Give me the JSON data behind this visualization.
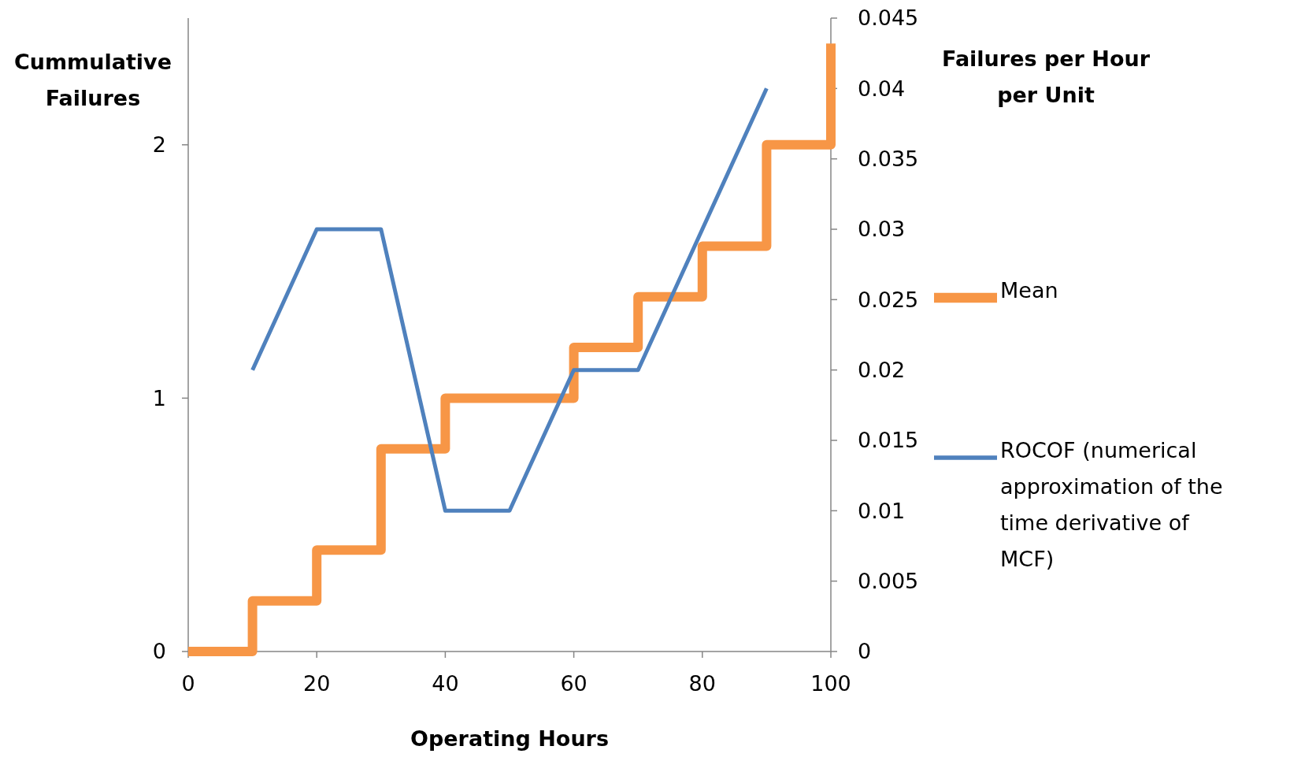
{
  "chart_data": {
    "type": "line",
    "xlabel": "Operating Hours",
    "ylabel": "Cummulative Failures",
    "y2label": "Failures per Hour per Unit",
    "xlim": [
      0,
      100
    ],
    "xticks": [
      0,
      20,
      40,
      60,
      80,
      100
    ],
    "ylim": [
      0,
      2.5
    ],
    "yticks": [
      0,
      1,
      2
    ],
    "y2lim": [
      0,
      0.045
    ],
    "y2ticks": [
      0,
      0.005,
      0.01,
      0.015,
      0.02,
      0.025,
      0.03,
      0.035,
      0.04,
      0.045
    ],
    "grid": false,
    "legend": "right",
    "marker": "none",
    "line_style": "solid",
    "series": [
      {
        "name": "Mean",
        "type": "step",
        "color": "#f79646",
        "x": [
          0,
          10,
          20,
          30,
          40,
          60,
          70,
          80,
          90,
          100
        ],
        "values": [
          0,
          0.2,
          0.4,
          0.8,
          1,
          1.2,
          1.4,
          1.6,
          2,
          2.4
        ]
      },
      {
        "name": "ROCOF (numerical approximation of the time derivative of MCF)",
        "type": "line",
        "axis": "y2",
        "color": "#4f81bd",
        "x": [
          10,
          20,
          30,
          40,
          50,
          60,
          70,
          80,
          90
        ],
        "values": [
          0.02,
          0.03,
          0.03,
          0.01,
          0.01,
          0.02,
          0.02,
          0.03,
          0.04
        ]
      }
    ]
  }
}
